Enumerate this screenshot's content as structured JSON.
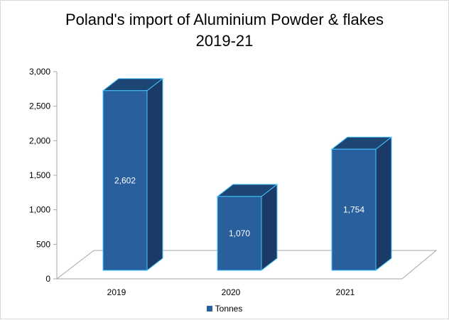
{
  "chart_data": {
    "type": "bar",
    "title_lines": [
      "Poland's import of Aluminium Powder & flakes",
      "2019-21"
    ],
    "categories": [
      "2019",
      "2020",
      "2021"
    ],
    "series": [
      {
        "name": "Tonnes",
        "values": [
          2602,
          1070,
          1754
        ]
      }
    ],
    "data_labels": [
      "2,602",
      "1,070",
      "1,754"
    ],
    "y_ticks": [
      "0",
      "500",
      "1,000",
      "1,500",
      "2,000",
      "2,500",
      "3,000"
    ],
    "ylim": [
      0,
      3000
    ],
    "grid": false,
    "legend_position": "bottom",
    "style": "3d-column",
    "colors": {
      "bar_front": "#2a5f9e",
      "bar_side": "#1b3b66",
      "bar_top": "#1d4675",
      "bar_outline": "#41c6ff"
    }
  }
}
